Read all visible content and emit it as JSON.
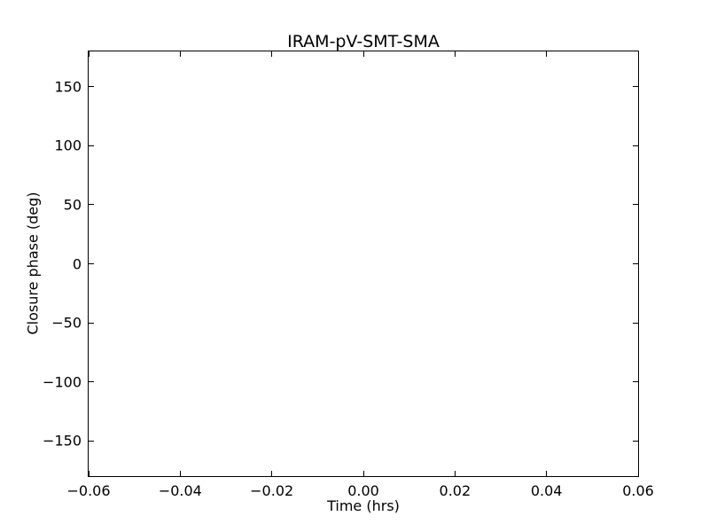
{
  "chart_data": {
    "type": "scatter",
    "title": "IRAM-pV-SMT-SMA",
    "xlabel": "Time (hrs)",
    "ylabel": "Closure phase (deg)",
    "xlim": [
      -0.06,
      0.06
    ],
    "ylim": [
      -180,
      180
    ],
    "xticks": [
      -0.06,
      -0.04,
      -0.02,
      0,
      0.02,
      0.04,
      0.06
    ],
    "xtick_labels": [
      "−0.06",
      "−0.04",
      "−0.02",
      "0.00",
      "0.02",
      "0.04",
      "0.06"
    ],
    "yticks": [
      150,
      100,
      50,
      0,
      -50,
      -100,
      -150
    ],
    "ytick_labels": [
      "150",
      "100",
      "50",
      "0",
      "−50",
      "−100",
      "−150"
    ],
    "series": [],
    "grid": false,
    "legend": null,
    "tick_direction": "in",
    "axes_color": "#000000",
    "background_color": "#ffffff"
  }
}
